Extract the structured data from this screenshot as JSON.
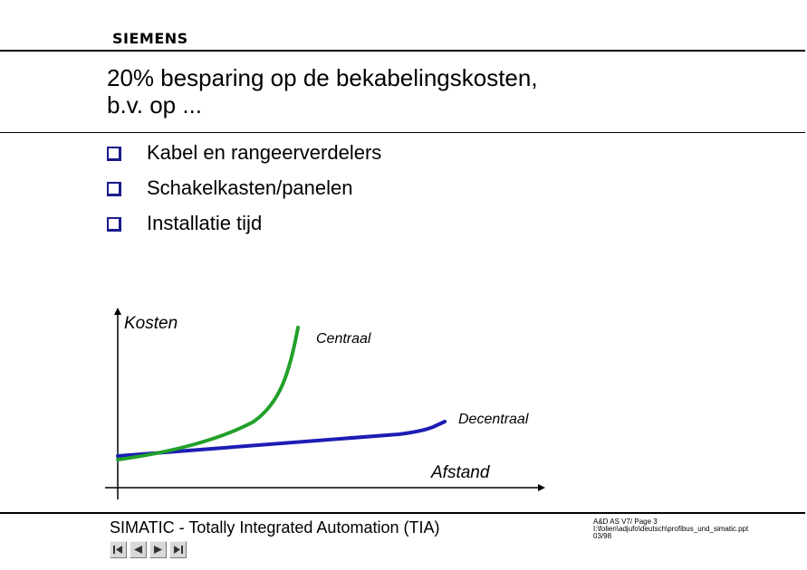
{
  "header": {
    "logo_text": "SIEMENS"
  },
  "title": {
    "line1": "20% besparing op de bekabelingskosten,",
    "line2": "b.v. op ..."
  },
  "bullets": [
    {
      "text": "Kabel en rangeerverdelers"
    },
    {
      "text": "Schakelkasten/panelen"
    },
    {
      "text": "Installatie tijd"
    }
  ],
  "diagram": {
    "y_axis_label": "Kosten",
    "x_axis_label": "Afstand",
    "curve_central_label": "Centraal",
    "curve_decentral_label": "Decentraal",
    "colors": {
      "central": "#22a02a",
      "decentral": "#1c1cb4",
      "checkbox": "#1a1a8c"
    }
  },
  "footer": {
    "title": "SIMATIC - Totally Integrated Automation (TIA)",
    "info_line1": "A&D AS V7/  Page 3",
    "info_line2": "I:\\folien\\adjufo\\deutsch\\profibus_und_simatic.ppt",
    "info_line3": "03/98",
    "nav": {
      "first_icon": "first-slide-icon",
      "prev_icon": "previous-slide-icon",
      "next_icon": "next-slide-icon",
      "last_icon": "last-slide-icon"
    }
  }
}
